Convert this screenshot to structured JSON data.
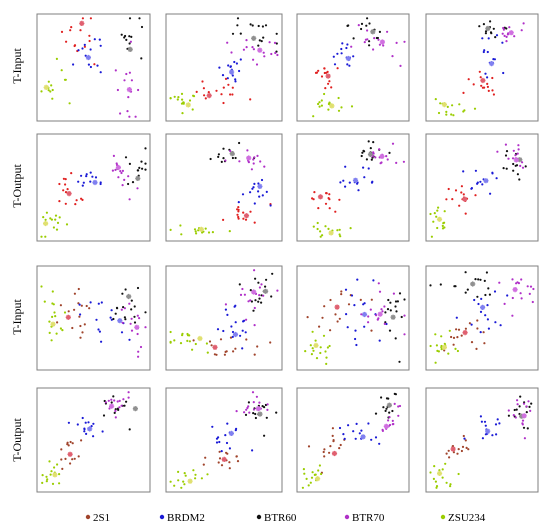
{
  "chart_data": {
    "type": "scatter",
    "row_labels": [
      "T-Input",
      "T-Output",
      "T-Input",
      "T-Output"
    ],
    "legend": [
      {
        "name": "2S1",
        "color": "#a0442c"
      },
      {
        "name": "BRDM2",
        "color": "#1a1ad6"
      },
      {
        "name": "BTR60",
        "color": "#111111"
      },
      {
        "name": "BTR70",
        "color": "#b030c8"
      },
      {
        "name": "ZSU234",
        "color": "#9acd00"
      }
    ],
    "highlight_colors": [
      "#e06070",
      "#8080f0",
      "#909090",
      "#d070e0",
      "#e0e070"
    ],
    "panels": [
      {
        "row": 0,
        "col": 0,
        "series": [
          {
            "class": 0,
            "color": "#e02020",
            "cx": 0.37,
            "cy": 0.22,
            "sx": 0.07,
            "sy": 0.16,
            "n": 14
          },
          {
            "class": 1,
            "cx": 0.47,
            "cy": 0.4,
            "sx": 0.06,
            "sy": 0.12,
            "n": 14
          },
          {
            "class": 2,
            "cx": 0.82,
            "cy": 0.28,
            "sx": 0.06,
            "sy": 0.1,
            "n": 14
          },
          {
            "class": 3,
            "cx": 0.82,
            "cy": 0.68,
            "sx": 0.07,
            "sy": 0.2,
            "n": 14
          },
          {
            "class": 4,
            "cx": 0.12,
            "cy": 0.68,
            "sx": 0.08,
            "sy": 0.12,
            "n": 14
          }
        ]
      },
      {
        "row": 0,
        "col": 1,
        "series": [
          {
            "class": 0,
            "color": "#e02020",
            "cx": 0.42,
            "cy": 0.72,
            "sx": 0.12,
            "sy": 0.07,
            "n": 16
          },
          {
            "class": 1,
            "cx": 0.58,
            "cy": 0.55,
            "sx": 0.06,
            "sy": 0.08,
            "n": 14
          },
          {
            "class": 2,
            "cx": 0.8,
            "cy": 0.18,
            "sx": 0.1,
            "sy": 0.08,
            "n": 16
          },
          {
            "class": 3,
            "cx": 0.78,
            "cy": 0.35,
            "sx": 0.1,
            "sy": 0.08,
            "n": 16
          },
          {
            "class": 4,
            "cx": 0.14,
            "cy": 0.82,
            "sx": 0.1,
            "sy": 0.05,
            "n": 16
          }
        ]
      },
      {
        "row": 0,
        "col": 2,
        "series": [
          {
            "class": 0,
            "color": "#e02020",
            "cx": 0.27,
            "cy": 0.58,
            "sx": 0.08,
            "sy": 0.08,
            "n": 14
          },
          {
            "class": 1,
            "cx": 0.45,
            "cy": 0.42,
            "sx": 0.08,
            "sy": 0.08,
            "n": 14
          },
          {
            "class": 2,
            "cx": 0.65,
            "cy": 0.15,
            "sx": 0.1,
            "sy": 0.07,
            "n": 14
          },
          {
            "class": 3,
            "cx": 0.7,
            "cy": 0.28,
            "sx": 0.12,
            "sy": 0.08,
            "n": 16
          },
          {
            "class": 4,
            "cx": 0.27,
            "cy": 0.85,
            "sx": 0.1,
            "sy": 0.06,
            "n": 16
          }
        ]
      },
      {
        "row": 0,
        "col": 3,
        "series": [
          {
            "class": 0,
            "color": "#e02020",
            "cx": 0.5,
            "cy": 0.65,
            "sx": 0.1,
            "sy": 0.06,
            "n": 14
          },
          {
            "class": 1,
            "cx": 0.55,
            "cy": 0.4,
            "sx": 0.07,
            "sy": 0.12,
            "n": 14
          },
          {
            "class": 2,
            "cx": 0.55,
            "cy": 0.13,
            "sx": 0.06,
            "sy": 0.06,
            "n": 12
          },
          {
            "class": 3,
            "cx": 0.75,
            "cy": 0.15,
            "sx": 0.1,
            "sy": 0.05,
            "n": 12
          },
          {
            "class": 4,
            "cx": 0.2,
            "cy": 0.85,
            "sx": 0.1,
            "sy": 0.06,
            "n": 14
          }
        ]
      },
      {
        "row": 1,
        "col": 0,
        "series": [
          {
            "class": 0,
            "color": "#e02020",
            "cx": 0.3,
            "cy": 0.55,
            "sx": 0.06,
            "sy": 0.1,
            "n": 14
          },
          {
            "class": 1,
            "cx": 0.5,
            "cy": 0.45,
            "sx": 0.06,
            "sy": 0.06,
            "n": 12
          },
          {
            "class": 2,
            "cx": 0.86,
            "cy": 0.35,
            "sx": 0.07,
            "sy": 0.1,
            "n": 14
          },
          {
            "class": 3,
            "cx": 0.75,
            "cy": 0.35,
            "sx": 0.07,
            "sy": 0.1,
            "n": 14
          },
          {
            "class": 4,
            "cx": 0.12,
            "cy": 0.82,
            "sx": 0.06,
            "sy": 0.1,
            "n": 14
          }
        ]
      },
      {
        "row": 1,
        "col": 1,
        "series": [
          {
            "class": 0,
            "color": "#e02020",
            "cx": 0.65,
            "cy": 0.75,
            "sx": 0.1,
            "sy": 0.05,
            "n": 14
          },
          {
            "class": 1,
            "cx": 0.78,
            "cy": 0.55,
            "sx": 0.08,
            "sy": 0.07,
            "n": 14
          },
          {
            "class": 2,
            "cx": 0.55,
            "cy": 0.2,
            "sx": 0.1,
            "sy": 0.05,
            "n": 14
          },
          {
            "class": 3,
            "cx": 0.68,
            "cy": 0.25,
            "sx": 0.1,
            "sy": 0.06,
            "n": 14
          },
          {
            "class": 4,
            "cx": 0.25,
            "cy": 0.9,
            "sx": 0.12,
            "sy": 0.03,
            "n": 14
          }
        ]
      },
      {
        "row": 1,
        "col": 2,
        "series": [
          {
            "class": 0,
            "color": "#e02020",
            "cx": 0.25,
            "cy": 0.6,
            "sx": 0.07,
            "sy": 0.08,
            "n": 14
          },
          {
            "class": 1,
            "cx": 0.5,
            "cy": 0.43,
            "sx": 0.1,
            "sy": 0.06,
            "n": 14
          },
          {
            "class": 2,
            "cx": 0.7,
            "cy": 0.18,
            "sx": 0.1,
            "sy": 0.05,
            "n": 14
          },
          {
            "class": 3,
            "cx": 0.8,
            "cy": 0.23,
            "sx": 0.08,
            "sy": 0.06,
            "n": 14
          },
          {
            "class": 4,
            "cx": 0.25,
            "cy": 0.9,
            "sx": 0.1,
            "sy": 0.04,
            "n": 14
          }
        ]
      },
      {
        "row": 1,
        "col": 3,
        "series": [
          {
            "class": 0,
            "color": "#e02020",
            "cx": 0.3,
            "cy": 0.6,
            "sx": 0.07,
            "sy": 0.07,
            "n": 14
          },
          {
            "class": 1,
            "cx": 0.55,
            "cy": 0.42,
            "sx": 0.08,
            "sy": 0.06,
            "n": 14
          },
          {
            "class": 2,
            "cx": 0.8,
            "cy": 0.25,
            "sx": 0.07,
            "sy": 0.08,
            "n": 14
          },
          {
            "class": 3,
            "cx": 0.8,
            "cy": 0.25,
            "sx": 0.06,
            "sy": 0.1,
            "n": 14
          },
          {
            "class": 4,
            "cx": 0.12,
            "cy": 0.8,
            "sx": 0.06,
            "sy": 0.07,
            "n": 14
          }
        ]
      },
      {
        "row": 2,
        "col": 0,
        "series": [
          {
            "class": 0,
            "cx": 0.35,
            "cy": 0.48,
            "sx": 0.1,
            "sy": 0.15,
            "n": 16
          },
          {
            "class": 1,
            "cx": 0.6,
            "cy": 0.55,
            "sx": 0.12,
            "sy": 0.2,
            "n": 16
          },
          {
            "class": 2,
            "cx": 0.8,
            "cy": 0.4,
            "sx": 0.08,
            "sy": 0.15,
            "n": 16
          },
          {
            "class": 3,
            "cx": 0.85,
            "cy": 0.55,
            "sx": 0.06,
            "sy": 0.18,
            "n": 14
          },
          {
            "class": 4,
            "cx": 0.12,
            "cy": 0.5,
            "sx": 0.06,
            "sy": 0.15,
            "n": 16
          }
        ]
      },
      {
        "row": 2,
        "col": 1,
        "series": [
          {
            "class": 0,
            "cx": 0.5,
            "cy": 0.78,
            "sx": 0.12,
            "sy": 0.06,
            "n": 16
          },
          {
            "class": 1,
            "cx": 0.6,
            "cy": 0.58,
            "sx": 0.08,
            "sy": 0.1,
            "n": 16
          },
          {
            "class": 2,
            "cx": 0.82,
            "cy": 0.25,
            "sx": 0.08,
            "sy": 0.12,
            "n": 16
          },
          {
            "class": 3,
            "cx": 0.72,
            "cy": 0.3,
            "sx": 0.1,
            "sy": 0.1,
            "n": 16
          },
          {
            "class": 4,
            "cx": 0.2,
            "cy": 0.7,
            "sx": 0.1,
            "sy": 0.06,
            "n": 16
          }
        ]
      },
      {
        "row": 2,
        "col": 2,
        "series": [
          {
            "class": 0,
            "cx": 0.4,
            "cy": 0.4,
            "sx": 0.12,
            "sy": 0.15,
            "n": 16
          },
          {
            "class": 1,
            "cx": 0.6,
            "cy": 0.45,
            "sx": 0.12,
            "sy": 0.15,
            "n": 16
          },
          {
            "class": 2,
            "cx": 0.85,
            "cy": 0.4,
            "sx": 0.06,
            "sy": 0.2,
            "n": 16
          },
          {
            "class": 3,
            "cx": 0.75,
            "cy": 0.45,
            "sx": 0.1,
            "sy": 0.2,
            "n": 16
          },
          {
            "class": 4,
            "cx": 0.18,
            "cy": 0.8,
            "sx": 0.08,
            "sy": 0.1,
            "n": 16
          }
        ]
      },
      {
        "row": 2,
        "col": 3,
        "series": [
          {
            "class": 0,
            "cx": 0.35,
            "cy": 0.65,
            "sx": 0.12,
            "sy": 0.1,
            "n": 16
          },
          {
            "class": 1,
            "cx": 0.5,
            "cy": 0.45,
            "sx": 0.1,
            "sy": 0.12,
            "n": 16
          },
          {
            "class": 2,
            "cx": 0.4,
            "cy": 0.18,
            "sx": 0.15,
            "sy": 0.08,
            "n": 16
          },
          {
            "class": 3,
            "cx": 0.8,
            "cy": 0.2,
            "sx": 0.1,
            "sy": 0.1,
            "n": 16
          },
          {
            "class": 4,
            "cx": 0.15,
            "cy": 0.8,
            "sx": 0.08,
            "sy": 0.08,
            "n": 16
          }
        ]
      },
      {
        "row": 3,
        "col": 0,
        "series": [
          {
            "class": 0,
            "cx": 0.3,
            "cy": 0.65,
            "sx": 0.07,
            "sy": 0.08,
            "n": 14
          },
          {
            "class": 1,
            "cx": 0.45,
            "cy": 0.4,
            "sx": 0.06,
            "sy": 0.08,
            "n": 14
          },
          {
            "class": 2,
            "cx": 0.75,
            "cy": 0.2,
            "sx": 0.1,
            "sy": 0.06,
            "n": 14
          },
          {
            "class": 3,
            "cx": 0.75,
            "cy": 0.15,
            "sx": 0.1,
            "sy": 0.05,
            "n": 14
          },
          {
            "class": 4,
            "cx": 0.12,
            "cy": 0.85,
            "sx": 0.06,
            "sy": 0.06,
            "n": 14
          }
        ]
      },
      {
        "row": 3,
        "col": 1,
        "series": [
          {
            "class": 0,
            "cx": 0.52,
            "cy": 0.7,
            "sx": 0.1,
            "sy": 0.04,
            "n": 14
          },
          {
            "class": 1,
            "cx": 0.55,
            "cy": 0.45,
            "sx": 0.08,
            "sy": 0.08,
            "n": 14
          },
          {
            "class": 2,
            "cx": 0.82,
            "cy": 0.25,
            "sx": 0.08,
            "sy": 0.08,
            "n": 14
          },
          {
            "class": 3,
            "cx": 0.78,
            "cy": 0.18,
            "sx": 0.08,
            "sy": 0.06,
            "n": 14
          },
          {
            "class": 4,
            "cx": 0.18,
            "cy": 0.85,
            "sx": 0.08,
            "sy": 0.06,
            "n": 14
          }
        ]
      },
      {
        "row": 3,
        "col": 2,
        "series": [
          {
            "class": 0,
            "cx": 0.3,
            "cy": 0.6,
            "sx": 0.07,
            "sy": 0.1,
            "n": 14
          },
          {
            "class": 1,
            "cx": 0.55,
            "cy": 0.45,
            "sx": 0.08,
            "sy": 0.06,
            "n": 14
          },
          {
            "class": 2,
            "cx": 0.82,
            "cy": 0.18,
            "sx": 0.06,
            "sy": 0.07,
            "n": 14
          },
          {
            "class": 3,
            "cx": 0.82,
            "cy": 0.3,
            "sx": 0.07,
            "sy": 0.08,
            "n": 14
          },
          {
            "class": 4,
            "cx": 0.15,
            "cy": 0.88,
            "sx": 0.07,
            "sy": 0.05,
            "n": 14
          }
        ]
      },
      {
        "row": 3,
        "col": 3,
        "series": [
          {
            "class": 0,
            "cx": 0.3,
            "cy": 0.6,
            "sx": 0.07,
            "sy": 0.08,
            "n": 14
          },
          {
            "class": 1,
            "cx": 0.55,
            "cy": 0.4,
            "sx": 0.08,
            "sy": 0.07,
            "n": 14
          },
          {
            "class": 2,
            "cx": 0.85,
            "cy": 0.25,
            "sx": 0.06,
            "sy": 0.1,
            "n": 14
          },
          {
            "class": 3,
            "cx": 0.85,
            "cy": 0.25,
            "sx": 0.06,
            "sy": 0.1,
            "n": 14
          },
          {
            "class": 4,
            "cx": 0.12,
            "cy": 0.85,
            "sx": 0.06,
            "sy": 0.06,
            "n": 14
          }
        ]
      }
    ]
  }
}
